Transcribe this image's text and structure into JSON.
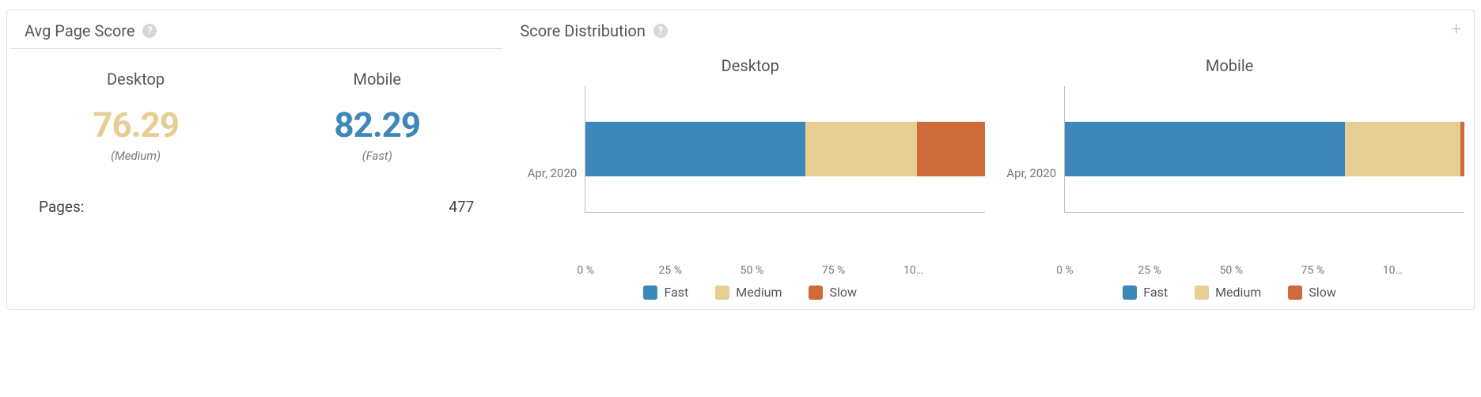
{
  "colors": {
    "fast": "#3d88b8",
    "medium": "#e6cd94",
    "slow": "#cf6b3a",
    "border": "#e0e0e0",
    "axis": "#bfbfbf",
    "text_muted": "#777777",
    "text": "#555555"
  },
  "avg_panel": {
    "title": "Avg Page Score",
    "desktop": {
      "label": "Desktop",
      "value": "76.29",
      "rating": "(Medium)",
      "rating_class": "medium"
    },
    "mobile": {
      "label": "Mobile",
      "value": "82.29",
      "rating": "(Fast)",
      "rating_class": "fast"
    },
    "pages_label": "Pages:",
    "pages_value": "477"
  },
  "dist_panel": {
    "title": "Score Distribution",
    "x_ticks": [
      "0 %",
      "25 %",
      "50 %",
      "75 %",
      "10…"
    ],
    "legend": {
      "fast": "Fast",
      "medium": "Medium",
      "slow": "Slow"
    },
    "charts": [
      {
        "title": "Desktop",
        "period_label": "Apr, 2020",
        "type": "stacked-bar",
        "xlim": [
          0,
          100
        ],
        "segments": [
          {
            "key": "fast",
            "pct": 55
          },
          {
            "key": "medium",
            "pct": 28
          },
          {
            "key": "slow",
            "pct": 17
          }
        ]
      },
      {
        "title": "Mobile",
        "period_label": "Apr, 2020",
        "type": "stacked-bar",
        "xlim": [
          0,
          100
        ],
        "segments": [
          {
            "key": "fast",
            "pct": 70
          },
          {
            "key": "medium",
            "pct": 29
          },
          {
            "key": "slow",
            "pct": 1
          }
        ]
      }
    ]
  }
}
